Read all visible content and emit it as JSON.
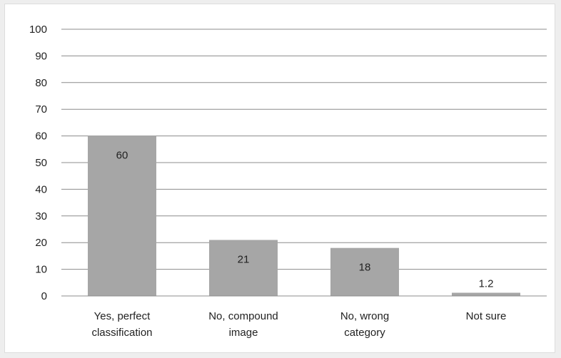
{
  "chart_data": {
    "type": "bar",
    "categories": [
      [
        "Yes, perfect",
        "classification"
      ],
      [
        "No, compound",
        "image"
      ],
      [
        "No, wrong",
        "category"
      ],
      [
        "Not sure"
      ]
    ],
    "values": [
      60,
      21,
      18,
      1.2
    ],
    "data_labels": [
      "60",
      "21",
      "18",
      "1.2"
    ],
    "title": "",
    "xlabel": "",
    "ylabel": "",
    "ylim": [
      0,
      100
    ],
    "yticks": [
      0,
      10,
      20,
      30,
      40,
      50,
      60,
      70,
      80,
      90,
      100
    ],
    "grid": true,
    "legend": "none",
    "colors": {
      "bar": "#a6a6a6",
      "grid": "#8c8c8c",
      "axis": "#8c8c8c",
      "background": "#ffffff",
      "page": "#eeeeee"
    }
  }
}
